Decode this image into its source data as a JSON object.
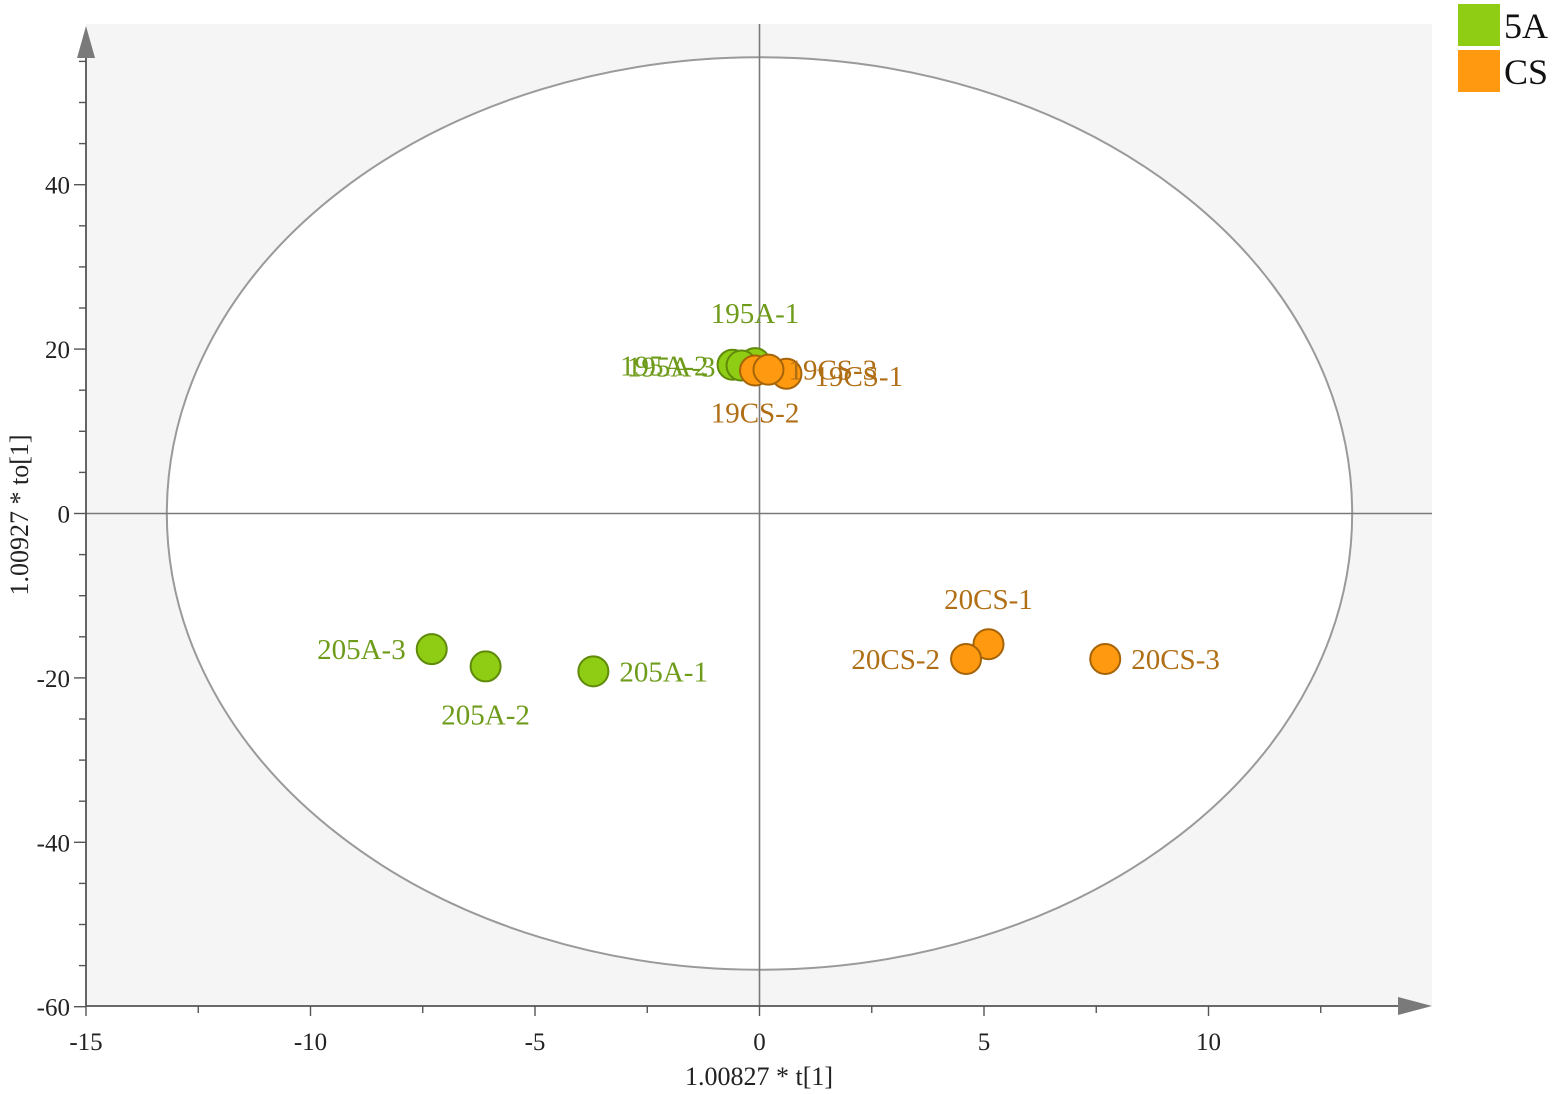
{
  "chart_data": {
    "type": "scatter",
    "title": "",
    "xlabel": "1.00827 * t[1]",
    "ylabel": "1.00927 * to[1]",
    "xlim": [
      -15,
      15
    ],
    "ylim": [
      -60,
      56
    ],
    "x_ticks": [
      -15,
      -10,
      -5,
      0,
      5,
      10
    ],
    "y_ticks": [
      -60,
      -40,
      -20,
      0,
      20,
      40
    ],
    "x_tick_labels": [
      "-15",
      "-10",
      "-5",
      "0",
      "5",
      "10"
    ],
    "y_tick_labels": [
      "-60",
      "-40",
      "-20",
      "0",
      "20",
      "40"
    ],
    "grid": false,
    "legend_position": "top-right",
    "confidence_ellipse": {
      "center": [
        0,
        0
      ],
      "semi_axis_x": 13.2,
      "semi_axis_y": 55.5
    },
    "series": [
      {
        "name": "5A",
        "color": "#8fcc14",
        "edge_color": "#5f8a0a",
        "label_color": "#6e9b1a",
        "points": [
          {
            "label": "195A-1",
            "x": -0.1,
            "y": 18.3
          },
          {
            "label": "195A-2",
            "x": -0.6,
            "y": 18.1
          },
          {
            "label": "195A-3",
            "x": -0.4,
            "y": 18.0
          },
          {
            "label": "205A-1",
            "x": -3.7,
            "y": -19.2
          },
          {
            "label": "205A-2",
            "x": -6.1,
            "y": -18.6
          },
          {
            "label": "205A-3",
            "x": -7.3,
            "y": -16.5
          }
        ]
      },
      {
        "name": "CS",
        "color": "#ff9a10",
        "edge_color": "#a66408",
        "label_color": "#b06e15",
        "points": [
          {
            "label": "19CS-1",
            "x": 0.6,
            "y": 17.0
          },
          {
            "label": "19CS-2",
            "x": -0.1,
            "y": 17.4
          },
          {
            "label": "19CS-3",
            "x": 0.2,
            "y": 17.5
          },
          {
            "label": "20CS-1",
            "x": 5.1,
            "y": -15.9
          },
          {
            "label": "20CS-2",
            "x": 4.6,
            "y": -17.7
          },
          {
            "label": "20CS-3",
            "x": 7.7,
            "y": -17.7
          }
        ]
      }
    ]
  }
}
